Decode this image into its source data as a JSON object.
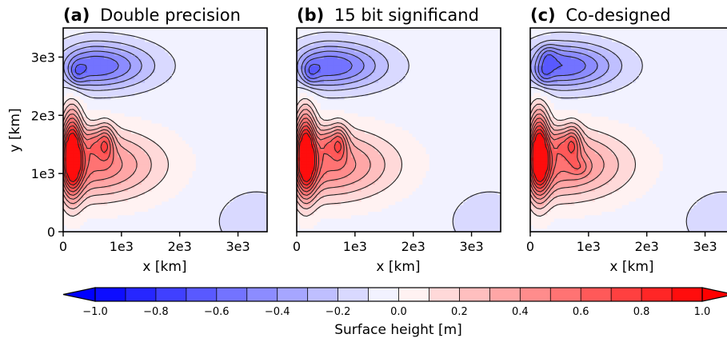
{
  "panels": [
    {
      "letter": "(a)",
      "title": "Double precision"
    },
    {
      "letter": "(b)",
      "title": "15 bit significand"
    },
    {
      "letter": "(c)",
      "title": "Co-designed"
    }
  ],
  "chart_data": {
    "type": "contour",
    "xlabel": "x [km]",
    "ylabel": "y [km]",
    "x_ticks": [
      "0",
      "1e3",
      "2e3",
      "3e3"
    ],
    "y_ticks": [
      "0",
      "1e3",
      "2e3",
      "3e3"
    ],
    "xlim": [
      0,
      3500
    ],
    "ylim": [
      0,
      3500
    ],
    "colorbar": {
      "label": "Surface height [m]",
      "ticks": [
        "−1.0",
        "−0.8",
        "−0.6",
        "−0.4",
        "−0.2",
        "0.0",
        "0.2",
        "0.4",
        "0.6",
        "0.8",
        "1.0"
      ],
      "range": [
        -1.0,
        1.0
      ],
      "levels": 20,
      "extend": "both",
      "colormap": "bwr",
      "neg_color": "#0000ff",
      "mid_color": "#ffffff",
      "pos_color": "#ff0000"
    },
    "fields": [
      {
        "max_value": 0.95,
        "min_value": -0.55
      },
      {
        "max_value": 0.95,
        "min_value": -0.55
      },
      {
        "max_value": 0.97,
        "min_value": -0.6
      }
    ]
  }
}
